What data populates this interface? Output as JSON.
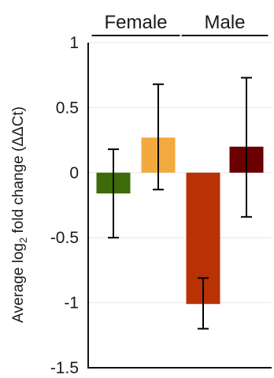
{
  "chart_data": {
    "type": "bar",
    "ylabel_prefix": "Average log",
    "ylabel_sub": "2",
    "ylabel_suffix": " fold change (ΔΔCt)",
    "ylim": [
      -1.5,
      1
    ],
    "yticks": [
      {
        "value": 1,
        "label": "1"
      },
      {
        "value": 0.5,
        "label": "0.5"
      },
      {
        "value": 0,
        "label": "0"
      },
      {
        "value": -0.5,
        "label": "-0.5"
      },
      {
        "value": -1,
        "label": "-1"
      },
      {
        "value": -1.5,
        "label": "-1.5"
      }
    ],
    "grid": true,
    "groups": [
      {
        "label": "Female",
        "bars": [
          0,
          1
        ]
      },
      {
        "label": "Male",
        "bars": [
          2,
          3
        ]
      }
    ],
    "bars": [
      {
        "value": -0.16,
        "err_low": -0.5,
        "err_high": 0.18,
        "color": "#3d6b0a"
      },
      {
        "value": 0.27,
        "err_low": -0.13,
        "err_high": 0.68,
        "color": "#f2aa3f"
      },
      {
        "value": -1.01,
        "err_low": -1.2,
        "err_high": -0.81,
        "color": "#b83205"
      },
      {
        "value": 0.2,
        "err_low": -0.34,
        "err_high": 0.73,
        "color": "#6a0000"
      }
    ]
  }
}
